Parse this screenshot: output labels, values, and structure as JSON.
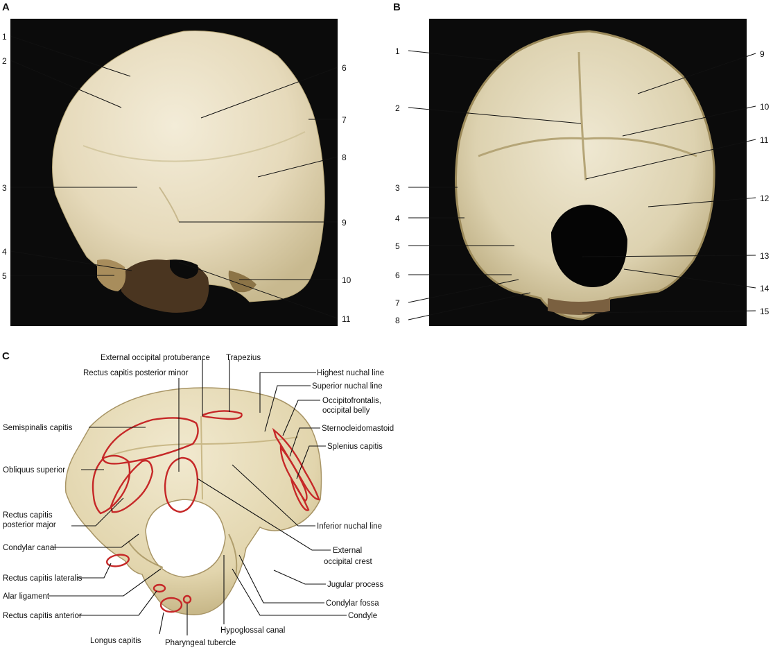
{
  "panels": {
    "a": {
      "letter": "A",
      "labels": [
        "1",
        "2",
        "3",
        "4",
        "5",
        "6",
        "7",
        "8",
        "9",
        "10",
        "11"
      ]
    },
    "b": {
      "letter": "B",
      "labels": [
        "1",
        "2",
        "3",
        "4",
        "5",
        "6",
        "7",
        "8",
        "9",
        "10",
        "11",
        "12",
        "13",
        "14",
        "15"
      ]
    },
    "c": {
      "letter": "C",
      "labels": {
        "external_occipital_protuberance": "External occipital protuberance",
        "trapezius": "Trapezius",
        "highest_nuchal_line": "Highest nuchal line",
        "rectus_capitis_posterior_minor": "Rectus capitis posterior minor",
        "superior_nuchal_line": "Superior nuchal line",
        "occipitofrontalis_1": "Occipitofrontalis,",
        "occipitofrontalis_2": "occipital belly",
        "semispinalis_capitis": "Semispinalis capitis",
        "sternocleidomastoid": "Sternocleidomastoid",
        "splenius_capitis": "Splenius capitis",
        "obliquus_superior": "Obliquus superior",
        "rectus_capitis_posterior_major_1": "Rectus capitis",
        "rectus_capitis_posterior_major_2": "posterior major",
        "inferior_nuchal_line": "Inferior nuchal line",
        "condylar_canal": "Condylar canal",
        "external_occipital_crest_1": "External",
        "external_occipital_crest_2": "occipital crest",
        "rectus_capitis_lateralis": "Rectus capitis lateralis",
        "jugular_process": "Jugular process",
        "alar_ligament": "Alar ligament",
        "condylar_fossa": "Condylar fossa",
        "rectus_capitis_anterior": "Rectus capitis anterior",
        "condyle": "Condyle",
        "hypoglossal_canal": "Hypoglossal canal",
        "longus_capitis": "Longus capitis",
        "pharyngeal_tubercle": "Pharyngeal tubercle"
      }
    }
  },
  "colors": {
    "photo_background": "#0b0b0b",
    "bone": "#e9dfc3",
    "bone_shadow": "#c9b98e",
    "muscle_attachment": "#c62828"
  }
}
